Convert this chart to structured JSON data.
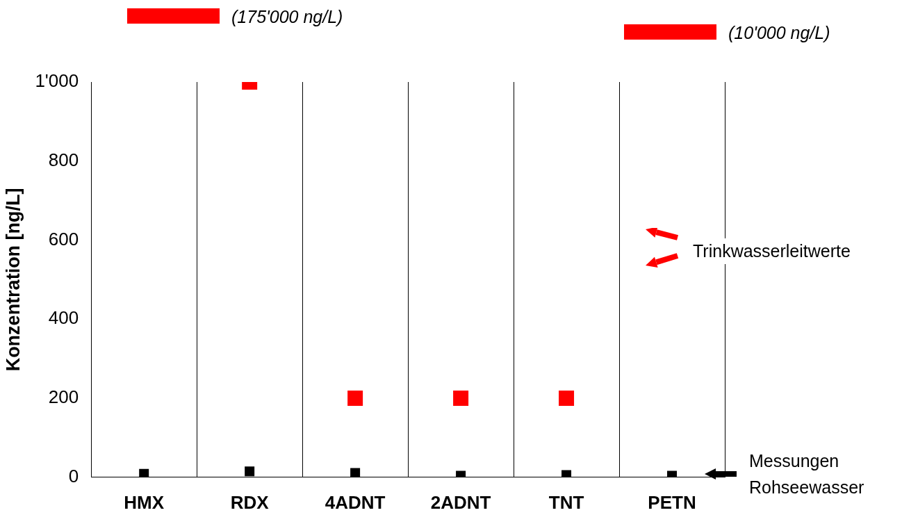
{
  "chart_data": {
    "type": "scatter",
    "ylabel": "Konzentration [ng/L]",
    "categories": [
      "HMX",
      "RDX",
      "4ADNT",
      "2ADNT",
      "TNT",
      "PETN"
    ],
    "series": [
      {
        "name": "Trinkwasserleitwerte",
        "color": "#ff0000",
        "values": [
          null,
          1000,
          200,
          200,
          200,
          null
        ]
      },
      {
        "name": "Messungen Rohseewasser",
        "color": "#000000",
        "values": [
          9,
          15,
          11,
          4,
          6,
          4
        ]
      }
    ],
    "annotations": [
      "(175'000 ng/L)",
      "(10'000 ng/L)"
    ],
    "ylim": [
      0,
      1000
    ],
    "yticks": [
      0,
      200,
      400,
      600,
      800,
      {
        "value": 1000,
        "label": "1'000"
      }
    ],
    "grid": "x",
    "legend": "right",
    "marker": "square"
  }
}
